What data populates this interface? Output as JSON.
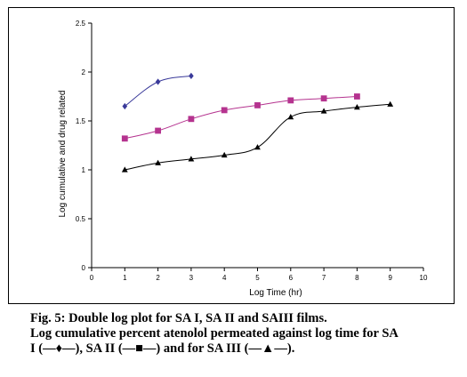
{
  "chart_data": {
    "type": "line",
    "title": "",
    "xlabel": "Log Time (hr)",
    "ylabel": "Log cumulative and drug related",
    "xlim": [
      0,
      10
    ],
    "ylim": [
      0,
      2.5
    ],
    "x_ticks": [
      "0",
      "1",
      "2",
      "3",
      "4",
      "5",
      "6",
      "7",
      "8",
      "9",
      "10"
    ],
    "y_ticks": [
      "0",
      "0.5",
      "1",
      "1.5",
      "2",
      "2.5"
    ],
    "grid": false,
    "legend": "none",
    "series": [
      {
        "marker": "diamond",
        "color": "#3a3a9a",
        "x": [
          1,
          2,
          3
        ],
        "y": [
          1.65,
          1.9,
          1.96
        ]
      },
      {
        "marker": "square",
        "color": "#b5338f",
        "x": [
          1,
          2,
          3,
          4,
          5,
          6,
          7,
          8
        ],
        "y": [
          1.32,
          1.4,
          1.52,
          1.61,
          1.66,
          1.71,
          1.73,
          1.75
        ]
      },
      {
        "marker": "triangle",
        "color": "#000000",
        "x": [
          1,
          2,
          3,
          4,
          5,
          6,
          7,
          8,
          9
        ],
        "y": [
          1.0,
          1.07,
          1.11,
          1.15,
          1.23,
          1.54,
          1.6,
          1.64,
          1.67
        ]
      }
    ]
  },
  "caption": {
    "line1": "Fig. 5: Double log plot for SA I, SA II and SAIII films.",
    "line2": "Log cumulative percent atenolol permeated against log time for SA",
    "line3": "I (—♦—), SA II (—■—) and for SA III (—▲—)."
  }
}
